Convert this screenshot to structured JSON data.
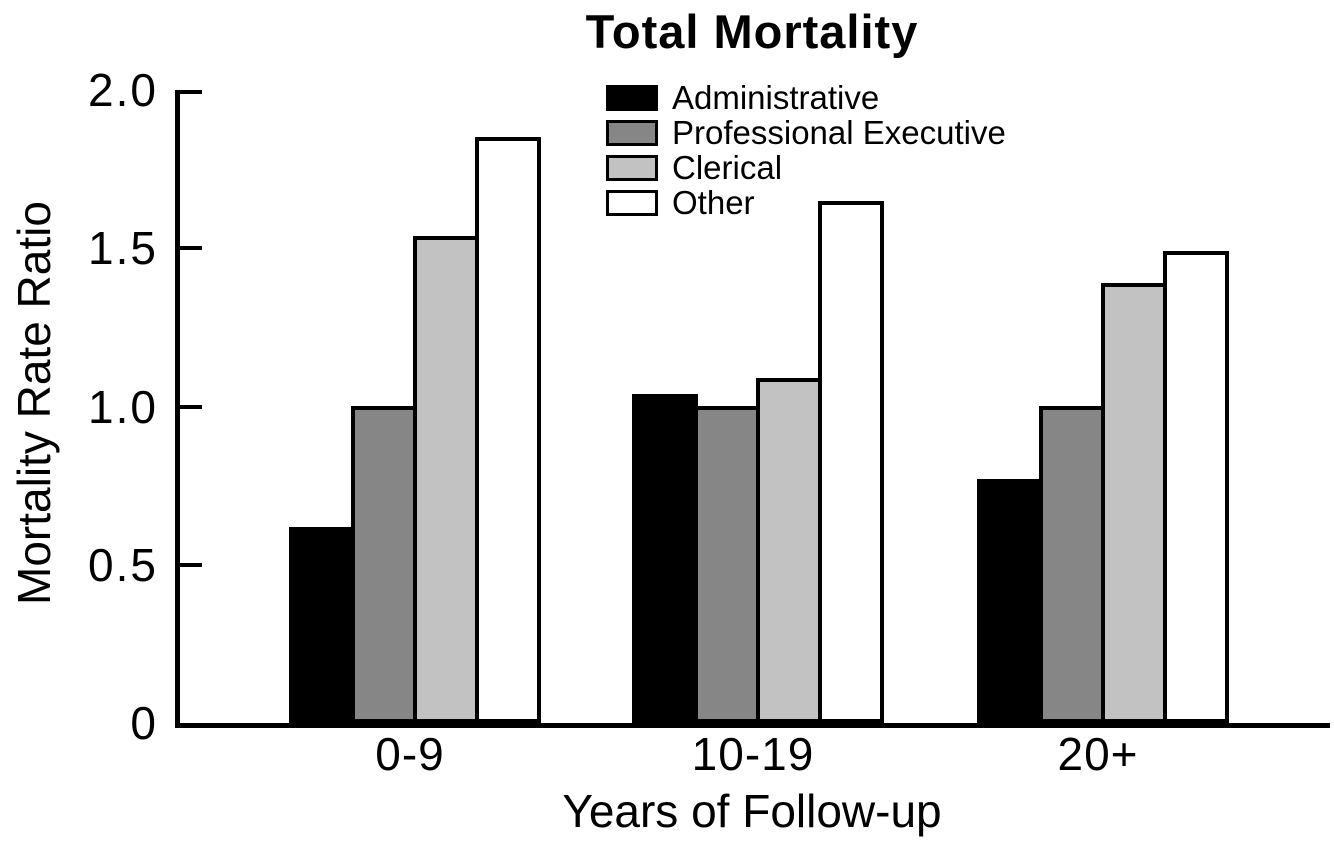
{
  "title": "Total Mortality",
  "colors": {
    "administrative": "#000000",
    "professional_executive": "#868686",
    "clerical": "#c2c2c2",
    "other": "#ffffff",
    "axis": "#000000",
    "background": "#ffffff"
  },
  "chart_data": {
    "type": "bar",
    "title": "Total Mortality",
    "xlabel": "Years of Follow-up",
    "ylabel": "Mortality Rate Ratio",
    "categories": [
      "0-9",
      "10-19",
      "20+"
    ],
    "series": [
      {
        "name": "Administrative",
        "color": "#000000",
        "values": [
          0.62,
          1.04,
          0.77
        ]
      },
      {
        "name": "Professional Executive",
        "color": "#868686",
        "values": [
          1.0,
          1.0,
          1.0
        ]
      },
      {
        "name": "Clerical",
        "color": "#c2c2c2",
        "values": [
          1.54,
          1.09,
          1.39
        ]
      },
      {
        "name": "Other",
        "color": "#ffffff",
        "values": [
          1.85,
          1.65,
          1.49
        ]
      }
    ],
    "ylim": [
      0,
      2.0
    ],
    "yticks": [
      0,
      0.5,
      1.0,
      1.5,
      2.0
    ],
    "ytick_labels": [
      "0",
      "0.5",
      "1.0",
      "1.5",
      "2.0"
    ],
    "grid": false,
    "legend_position": "top-center"
  }
}
